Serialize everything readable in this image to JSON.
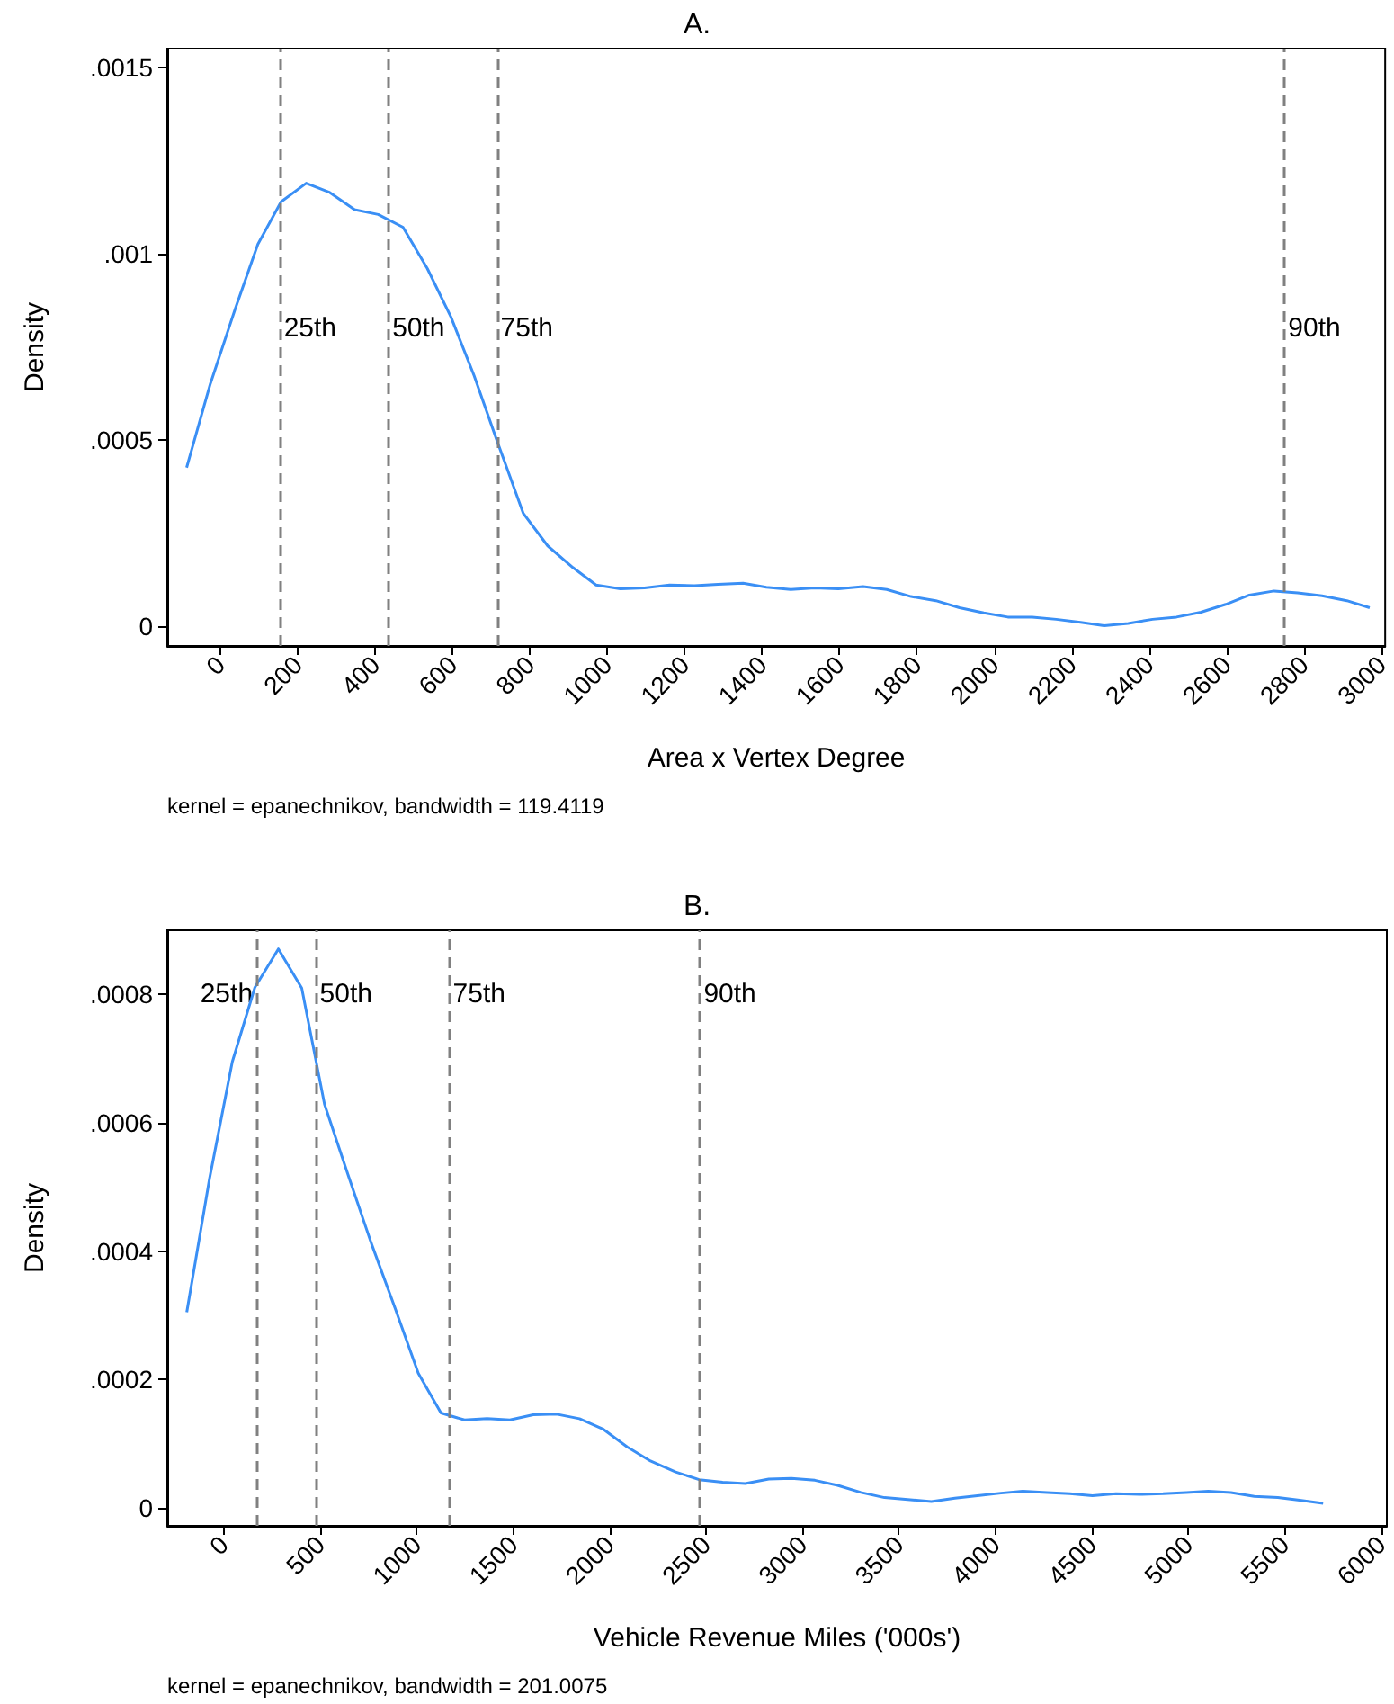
{
  "chart_data": [
    {
      "type": "line",
      "title": "A.",
      "xlabel": "Area x Vertex Degree",
      "ylabel": "Density",
      "series": [
        {
          "color": "#3a8ff5",
          "x": [
            -87,
            -26,
            38,
            97,
            157,
            222,
            283,
            347,
            408,
            472,
            535,
            596,
            656,
            715,
            783,
            846,
            911,
            971,
            1034,
            1096,
            1161,
            1225,
            1286,
            1351,
            1411,
            1474,
            1536,
            1597,
            1661,
            1722,
            1785,
            1849,
            1910,
            1973,
            2035,
            2098,
            2160,
            2223,
            2284,
            2346,
            2409,
            2471,
            2534,
            2598,
            2659,
            2723,
            2784,
            2847,
            2911,
            2970
          ],
          "values": [
            0.000426,
            0.00065,
            0.00085,
            0.001025,
            0.001139,
            0.001189,
            0.001164,
            0.001118,
            0.001105,
            0.001071,
            0.00096,
            0.00083,
            0.000672,
            0.000498,
            0.000303,
            0.000216,
            0.000158,
            0.000111,
            0.000101,
            0.000103,
            0.000111,
            0.000109,
            0.000113,
            0.000116,
            0.000105,
            9.9e-05,
            0.000103,
            0.000101,
            0.000107,
            9.9e-05,
            8e-05,
            6.9e-05,
            5e-05,
            3.6e-05,
            2.5e-05,
            2.5e-05,
            1.9e-05,
            1.1e-05,
            2e-06,
            8e-06,
            1.9e-05,
            2.5e-05,
            3.8e-05,
            5.9e-05,
            8.4e-05,
            9.5e-05,
            9e-05,
            8.2e-05,
            6.9e-05,
            5e-05
          ]
        }
      ],
      "xlim": [
        -137,
        3010
      ],
      "xticks": [
        0,
        200,
        400,
        600,
        800,
        1000,
        1200,
        1400,
        1600,
        1800,
        2000,
        2200,
        2400,
        2600,
        2800,
        3000
      ],
      "ylim": [
        -5.25e-05,
        0.00155
      ],
      "yticks": [
        {
          "value": 0,
          "label": "0"
        },
        {
          "value": 0.0005,
          "label": ".0005"
        },
        {
          "value": 0.001,
          "label": ".001"
        },
        {
          "value": 0.0015,
          "label": ".0015"
        }
      ],
      "ref_lines": [
        {
          "axis": "x",
          "value": 155,
          "color": "#808080",
          "line_style": "dashed"
        },
        {
          "axis": "x",
          "value": 435,
          "color": "#808080",
          "line_style": "dashed"
        },
        {
          "axis": "x",
          "value": 715,
          "color": "#808080",
          "line_style": "dashed"
        },
        {
          "axis": "x",
          "value": 2750,
          "color": "#808080",
          "line_style": "dashed"
        }
      ],
      "annotations": [
        {
          "text": "25th",
          "x": 155,
          "y": 0.0008
        },
        {
          "text": "50th",
          "x": 435,
          "y": 0.0008
        },
        {
          "text": "75th",
          "x": 715,
          "y": 0.0008
        },
        {
          "text": "90th",
          "x": 2750,
          "y": 0.0008
        },
        "kernel = epanechnikov, bandwidth = 119.4119"
      ],
      "grid": false,
      "marker": "none",
      "line_style": "solid"
    },
    {
      "type": "line",
      "title": "B.",
      "xlabel": "Vehicle Revenue Miles ('000s')",
      "ylabel": "Density",
      "series": [
        {
          "color": "#3a8ff5",
          "x": [
            -191,
            -73,
            45,
            162,
            284,
            405,
            523,
            645,
            766,
            888,
            1009,
            1127,
            1249,
            1366,
            1484,
            1605,
            1727,
            1845,
            1966,
            2092,
            2213,
            2343,
            2465,
            2587,
            2704,
            2826,
            2943,
            3065,
            3183,
            3304,
            3426,
            3547,
            3669,
            3791,
            3908,
            4030,
            4143,
            4269,
            4387,
            4504,
            4626,
            4748,
            4870,
            4991,
            5104,
            5222,
            5343,
            5465,
            5578,
            5700
          ],
          "values": [
            0.000305,
            0.000513,
            0.000695,
            0.000811,
            0.000871,
            0.00081,
            0.000629,
            0.000519,
            0.000412,
            0.000312,
            0.00021,
            0.000148,
            0.000137,
            0.000139,
            0.000137,
            0.000145,
            0.000146,
            0.000139,
            0.000123,
            9.5e-05,
            7.3e-05,
            5.6e-05,
            4.4e-05,
            4e-05,
            3.8e-05,
            4.5e-05,
            4.6e-05,
            4.3e-05,
            3.5e-05,
            2.4e-05,
            1.6e-05,
            1.3e-05,
            1e-05,
            1.5e-05,
            1.9e-05,
            2.3e-05,
            2.6e-05,
            2.4e-05,
            2.2e-05,
            1.9e-05,
            2.2e-05,
            2.1e-05,
            2.2e-05,
            2.4e-05,
            2.6e-05,
            2.4e-05,
            1.8e-05,
            1.6e-05,
            1.2e-05,
            7e-06
          ]
        }
      ],
      "xlim": [
        -292,
        6030
      ],
      "xticks": [
        0,
        500,
        1000,
        1500,
        2000,
        2500,
        3000,
        3500,
        4000,
        4500,
        5000,
        5500,
        6000
      ],
      "ylim": [
        -2.8e-05,
        0.0009
      ],
      "yticks": [
        {
          "value": 0,
          "label": "0"
        },
        {
          "value": 0.0002,
          "label": ".0002"
        },
        {
          "value": 0.0004,
          "label": ".0004"
        },
        {
          "value": 0.0006,
          "label": ".0006"
        },
        {
          "value": 0.0008,
          "label": ".0008"
        }
      ],
      "ref_lines": [
        {
          "axis": "x",
          "value": 170,
          "color": "#808080",
          "line_style": "dashed"
        },
        {
          "axis": "x",
          "value": 480,
          "color": "#808080",
          "line_style": "dashed"
        },
        {
          "axis": "x",
          "value": 1170,
          "color": "#808080",
          "line_style": "dashed"
        },
        {
          "axis": "x",
          "value": 2470,
          "color": "#808080",
          "line_style": "dashed"
        }
      ],
      "annotations": [
        {
          "text": "25th",
          "x": 170,
          "y": 0.0008
        },
        {
          "text": "50th",
          "x": 480,
          "y": 0.0008
        },
        {
          "text": "75th",
          "x": 1170,
          "y": 0.0008
        },
        {
          "text": "90th",
          "x": 2470,
          "y": 0.0008
        },
        "kernel = epanechnikov, bandwidth = 201.0075"
      ],
      "grid": false,
      "marker": "none",
      "line_style": "solid"
    }
  ]
}
